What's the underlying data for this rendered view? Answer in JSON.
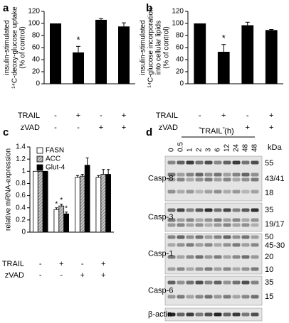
{
  "chart_data": [
    {
      "type": "bar",
      "panel_label": "a",
      "ylabel": [
        "insulin-stimulated",
        "¹⁴C-deoxy-glucose uptake",
        "(% of control)"
      ],
      "values": [
        100,
        52,
        106,
        95
      ],
      "errors": [
        0,
        10,
        2,
        6
      ],
      "color": "#000000",
      "ylim": [
        0,
        120
      ],
      "yticks": [
        0,
        20,
        40,
        60,
        80,
        100,
        120
      ],
      "annotations": [
        {
          "text": "*",
          "category": 1
        }
      ],
      "conditions": [
        {
          "name": "TRAIL",
          "signs": [
            "-",
            "+",
            "-",
            "+"
          ]
        },
        {
          "name": "zVAD",
          "signs": [
            "-",
            "-",
            "+",
            "+"
          ]
        }
      ]
    },
    {
      "type": "bar",
      "panel_label": "b",
      "ylabel": [
        "insulin-stimulated",
        "¹⁴C-glucose incorporation",
        "into cellular lipids",
        "(% of control)"
      ],
      "values": [
        100,
        53,
        97,
        89
      ],
      "errors": [
        0,
        12,
        5,
        1
      ],
      "color": "#000000",
      "ylim": [
        0,
        120
      ],
      "yticks": [
        0,
        20,
        40,
        60,
        80,
        100,
        120
      ],
      "annotations": [
        {
          "text": "*",
          "category": 1
        }
      ],
      "conditions": [
        {
          "name": "TRAIL",
          "signs": [
            "-",
            "+",
            "-",
            "+"
          ]
        },
        {
          "name": "zVAD",
          "signs": [
            "-",
            "-",
            "+",
            "+"
          ]
        }
      ]
    },
    {
      "type": "bar",
      "panel_label": "c",
      "ylabel": [
        "relative mRNA-expression"
      ],
      "series": [
        {
          "name": "FASN",
          "color": "#ffffff",
          "values": [
            1,
            0.37,
            0.9,
            0.9
          ],
          "errors": [
            0,
            0.03,
            0.03,
            0.03
          ]
        },
        {
          "name": "ACC",
          "color": "#a8a8a8",
          "hatch": true,
          "values": [
            1,
            0.43,
            0.92,
            0.95
          ],
          "errors": [
            0,
            0.03,
            0.03,
            0.08
          ]
        },
        {
          "name": "Glut-4",
          "color": "#000000",
          "values": [
            1,
            0.3,
            1.1,
            0.95
          ],
          "errors": [
            0,
            0.03,
            0.12,
            0.08
          ]
        }
      ],
      "ylim": [
        0,
        1.4
      ],
      "yticks": [
        0,
        0.2,
        0.4,
        0.6,
        0.8,
        1,
        1.2,
        1.4
      ],
      "annotations": [
        {
          "text": "*",
          "category": 1,
          "series": 0
        },
        {
          "text": "*",
          "category": 1,
          "series": 1
        },
        {
          "text": "*",
          "category": 1,
          "series": 2
        }
      ],
      "conditions": [
        {
          "name": "TRAIL",
          "signs": [
            "-",
            "+",
            "-",
            "+"
          ]
        },
        {
          "name": "zVAD",
          "signs": [
            "-",
            "-",
            "+",
            "+"
          ]
        }
      ]
    }
  ],
  "blot": {
    "panel_label": "d",
    "header": "TRAIL (h)",
    "unit": "kDa",
    "lanes": [
      "0",
      "0.5",
      "1",
      "2",
      "3",
      "6",
      "12",
      "24",
      "48",
      "48"
    ],
    "rows": [
      {
        "name": "Casp-8",
        "markers": [
          "55",
          "43/41",
          "18"
        ]
      },
      {
        "name": "Casp-3",
        "markers": [
          "35",
          "19/17"
        ]
      },
      {
        "name": "Casp-1",
        "markers": [
          "50",
          "45-30",
          "20",
          "10"
        ]
      },
      {
        "name": "Casp-6",
        "markers": [
          "35",
          "15"
        ]
      },
      {
        "name": "β-actin",
        "markers": []
      }
    ]
  }
}
